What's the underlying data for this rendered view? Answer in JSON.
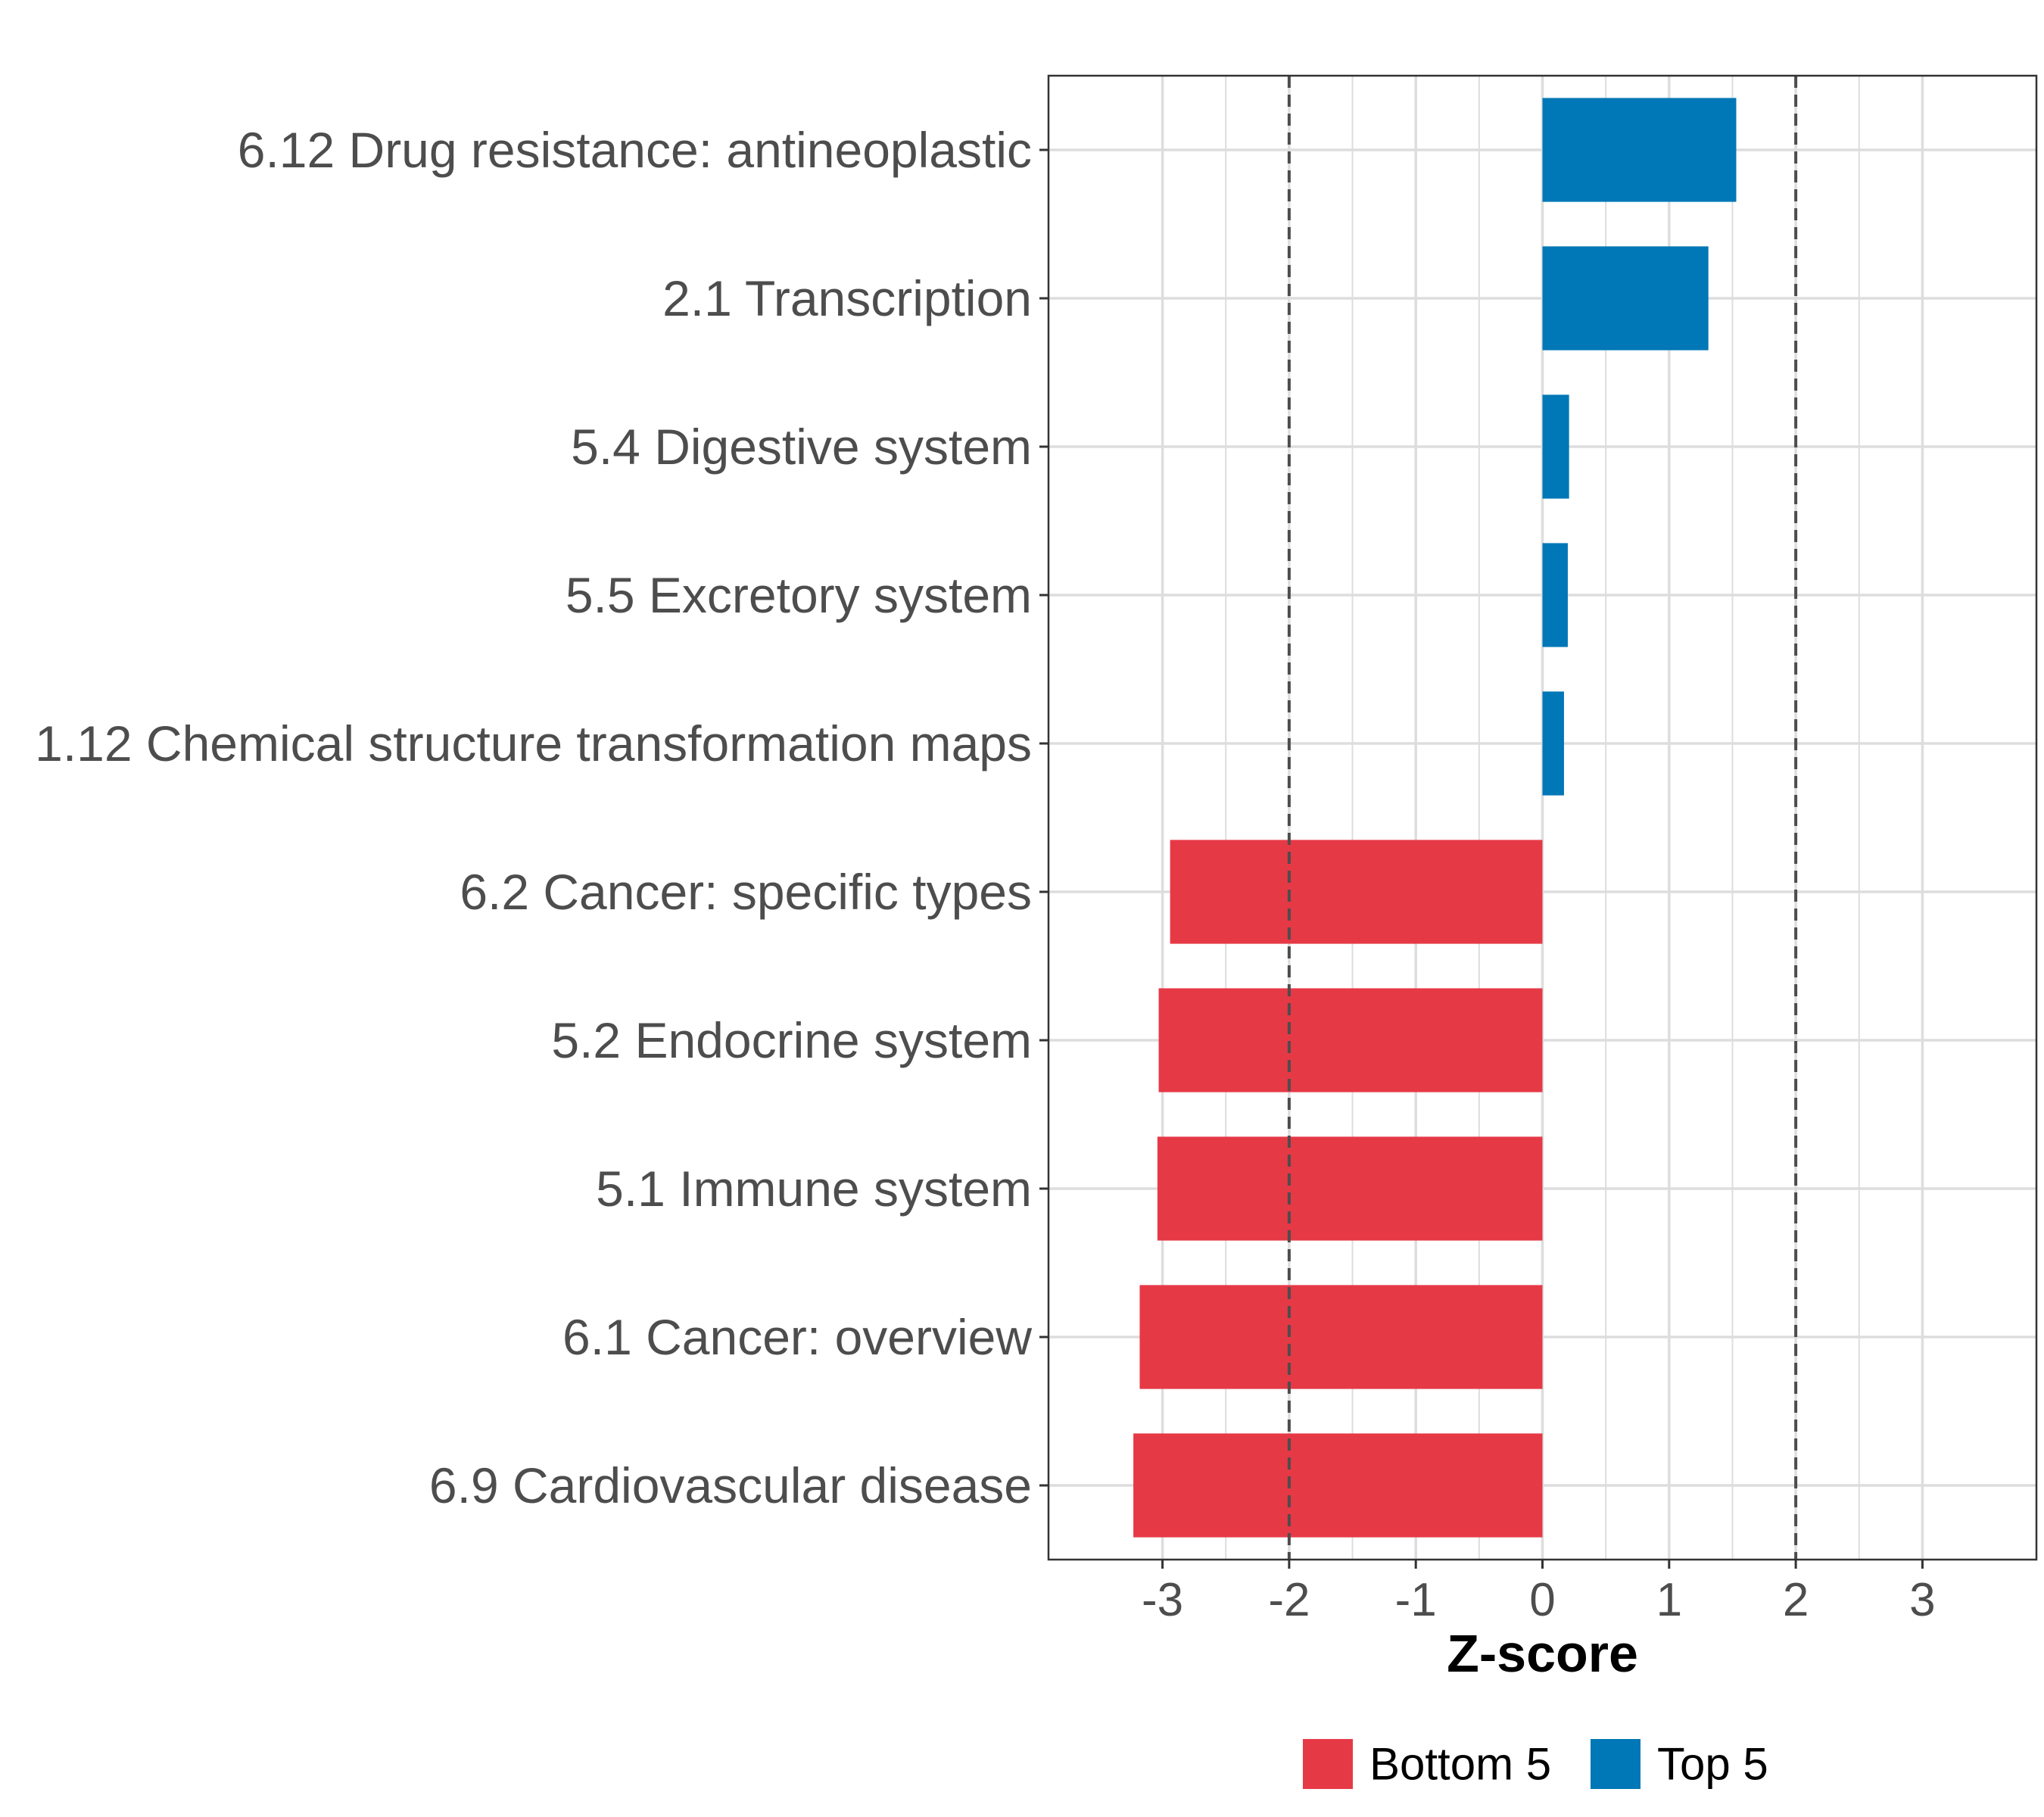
{
  "chart_data": {
    "type": "bar",
    "orientation": "horizontal",
    "categories": [
      "6.12 Drug resistance: antineoplastic",
      "2.1 Transcription",
      "5.4 Digestive system",
      "5.5 Excretory system",
      "1.12 Chemical structure transformation maps",
      "6.2 Cancer: specific types",
      "5.2 Endocrine system",
      "5.1 Immune system",
      "6.1 Cancer: overview",
      "6.9 Cardiovascular disease"
    ],
    "values": [
      1.53,
      1.31,
      0.21,
      0.2,
      0.17,
      -2.94,
      -3.03,
      -3.04,
      -3.18,
      -3.23
    ],
    "groups": [
      "Top 5",
      "Top 5",
      "Top 5",
      "Top 5",
      "Top 5",
      "Bottom 5",
      "Bottom 5",
      "Bottom 5",
      "Bottom 5",
      "Bottom 5"
    ],
    "xlabel": "Z-score",
    "ylabel": "",
    "xlim": [
      -3.9,
      3.9
    ],
    "xticks": [
      -3,
      -2,
      -1,
      0,
      1,
      2,
      3
    ],
    "xtick_labels": [
      "-3",
      "-2",
      "-1",
      "0",
      "1",
      "2",
      "3"
    ],
    "reference_lines": [
      -2,
      2
    ],
    "grid": true,
    "legend": {
      "position": "bottom",
      "entries": [
        {
          "label": "Bottom 5",
          "color": "#E63946"
        },
        {
          "label": "Top 5",
          "color": "#0077B6"
        }
      ]
    }
  },
  "colors": {
    "top": "#0077B6",
    "bottom": "#E63946",
    "grid": "#dddddd",
    "reference_line": "#4d4d4d"
  }
}
